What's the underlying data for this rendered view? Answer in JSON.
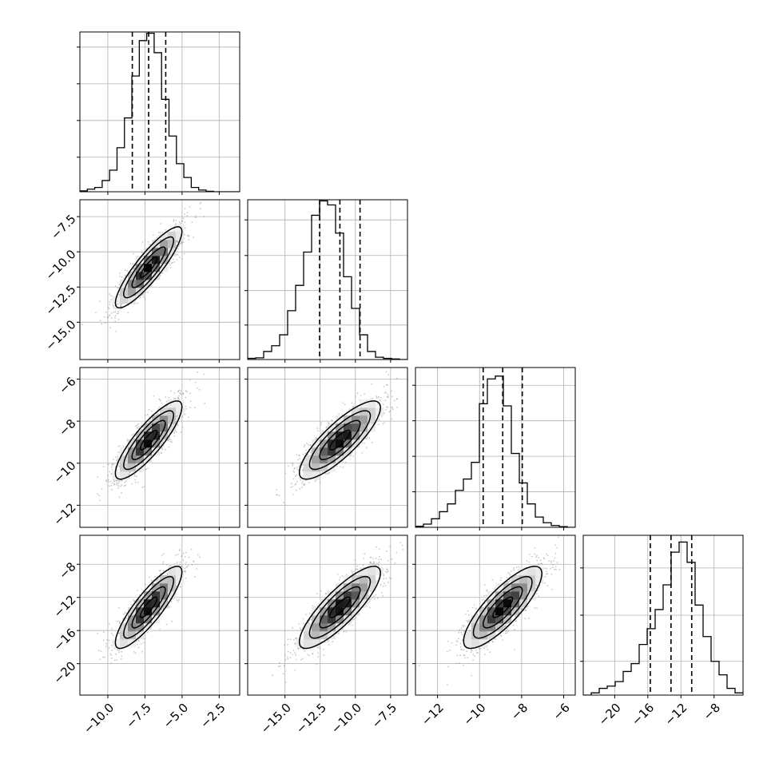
{
  "chart_data": {
    "type": "corner",
    "n_params": 4,
    "params": [
      {
        "range": [
          -11.88,
          -1.12
        ],
        "hist_ylim": [
          0,
          0.37
        ],
        "ticks": [
          -10.0,
          -7.5,
          -5.0,
          -2.5
        ],
        "tick_labels": [
          "−10.0",
          "−7.5",
          "−5.0",
          "−2.5"
        ],
        "hist_ticks": [
          0.08,
          0.165,
          0.25,
          0.335
        ],
        "quantiles": [
          -8.35,
          -7.25,
          -6.1
        ],
        "hist_bins": {
          "start": -11.88,
          "width": 0.5,
          "values": [
            0.002,
            0.006,
            0.01,
            0.026,
            0.05,
            0.102,
            0.171,
            0.268,
            0.35,
            0.367,
            0.322,
            0.214,
            0.129,
            0.065,
            0.033,
            0.01,
            0.004,
            0.001,
            0,
            0,
            0,
            0
          ]
        }
      },
      {
        "range": [
          -17.65,
          -6.3
        ],
        "hist_ylim": [
          0,
          0.278
        ],
        "ticks": [
          -15.0,
          -12.5,
          -10.0,
          -7.5
        ],
        "tick_labels": [
          "−15.0",
          "−12.5",
          "−10.0",
          "−7.5"
        ],
        "hist_ticks": [
          0.06,
          0.12,
          0.181,
          0.243
        ],
        "quantiles": [
          -12.54,
          -11.1,
          -9.67
        ],
        "hist_bins": {
          "start": -17.65,
          "width": 0.5675,
          "values": [
            0.002,
            0.003,
            0.014,
            0.024,
            0.043,
            0.085,
            0.129,
            0.187,
            0.251,
            0.276,
            0.269,
            0.22,
            0.144,
            0.089,
            0.043,
            0.014,
            0.004,
            0.002,
            0.001,
            0
          ]
        }
      },
      {
        "range": [
          -13.05,
          -5.45
        ],
        "hist_ylim": [
          0,
          0.45
        ],
        "ticks": [
          -12,
          -10,
          -8,
          -6
        ],
        "tick_labels": [
          "−12",
          "−10",
          "−8",
          "−6"
        ],
        "hist_ticks": [
          0.1,
          0.2,
          0.3,
          0.4
        ],
        "quantiles": [
          -9.83,
          -8.9,
          -7.97
        ],
        "hist_bins": {
          "start": -13.05,
          "width": 0.38,
          "values": [
            0.003,
            0.009,
            0.024,
            0.044,
            0.066,
            0.104,
            0.136,
            0.183,
            0.348,
            0.418,
            0.426,
            0.342,
            0.208,
            0.125,
            0.066,
            0.029,
            0.013,
            0.005,
            0.002,
            0
          ]
        }
      },
      {
        "range": [
          -23.8,
          -4.5
        ],
        "hist_ylim": [
          0,
          0.142
        ],
        "ticks": [
          -20,
          -16,
          -12,
          -8
        ],
        "tick_labels": [
          "−20",
          "−16",
          "−12",
          "−8"
        ],
        "hist_ticks": [
          0.03,
          0.071,
          0.113
        ],
        "quantiles": [
          -15.7,
          -13.2,
          -10.7
        ],
        "hist_bins": {
          "start": -23.8,
          "width": 0.965,
          "values": [
            0,
            0.002,
            0.006,
            0.008,
            0.012,
            0.021,
            0.028,
            0.045,
            0.059,
            0.076,
            0.098,
            0.127,
            0.136,
            0.118,
            0.08,
            0.052,
            0.03,
            0.018,
            0.006,
            0.002
          ]
        }
      }
    ],
    "pairs": [
      {
        "row": 1,
        "col": 0,
        "mean": [
          -7.25,
          -11.1
        ],
        "sd": [
          1.12,
          1.44
        ],
        "rho": 0.88
      },
      {
        "row": 2,
        "col": 0,
        "mean": [
          -7.25,
          -8.9
        ],
        "sd": [
          1.12,
          0.93
        ],
        "rho": 0.85
      },
      {
        "row": 2,
        "col": 1,
        "mean": [
          -11.1,
          -8.9
        ],
        "sd": [
          1.44,
          0.93
        ],
        "rho": 0.83
      },
      {
        "row": 3,
        "col": 0,
        "mean": [
          -7.25,
          -13.2
        ],
        "sd": [
          1.12,
          2.48
        ],
        "rho": 0.86
      },
      {
        "row": 3,
        "col": 1,
        "mean": [
          -11.1,
          -13.2
        ],
        "sd": [
          1.44,
          2.48
        ],
        "rho": 0.84
      },
      {
        "row": 3,
        "col": 2,
        "mean": [
          -8.9,
          -13.2
        ],
        "sd": [
          0.93,
          2.48
        ],
        "rho": 0.82
      }
    ],
    "contour_levels": [
      0.5,
      1.0,
      1.5,
      2.0
    ],
    "grid": true,
    "colors": {
      "lines": "#000000",
      "points": "#9a9a9a",
      "grid": "#b0b0b0"
    }
  }
}
